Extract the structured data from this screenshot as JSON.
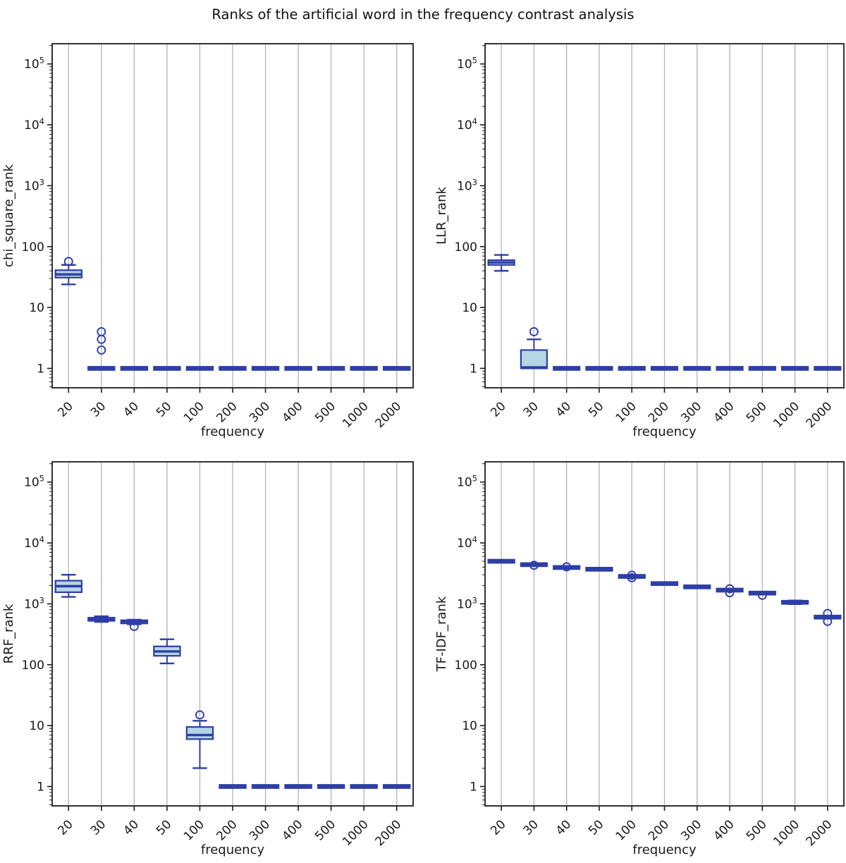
{
  "title": "Ranks of the artificial word in the frequency contrast analysis",
  "colors": {
    "box_edge": "#2e3ea6",
    "box_fill": "#b5d6e4",
    "grid": "#b3b3b3",
    "spine": "#1c1c1c",
    "text": "#1a1a1a"
  },
  "chart_data": [
    {
      "type": "boxplot",
      "position": "top-left",
      "ylabel": "chi_square_rank",
      "xlabel": "frequency",
      "yscale": "log",
      "grid": "vertical-only",
      "categories": [
        "20",
        "30",
        "40",
        "50",
        "100",
        "200",
        "300",
        "400",
        "500",
        "1000",
        "2000"
      ],
      "ylim": [
        0.48,
        215000
      ],
      "yticks": [
        {
          "v": 1,
          "label": "1"
        },
        {
          "v": 10,
          "label": "10"
        },
        {
          "v": 100,
          "label": "100"
        },
        {
          "v": 1000,
          "label": "10^3"
        },
        {
          "v": 10000,
          "label": "10^4"
        },
        {
          "v": 100000,
          "label": "10^5"
        }
      ],
      "boxes": [
        {
          "whislo": 24,
          "q1": 31,
          "med": 35,
          "q3": 41,
          "whishi": 50,
          "fliers": [
            57
          ]
        },
        {
          "whislo": 1,
          "q1": 1,
          "med": 1,
          "q3": 1,
          "whishi": 1,
          "fliers": [
            2,
            3,
            4
          ]
        },
        {
          "whislo": 1,
          "q1": 1,
          "med": 1,
          "q3": 1,
          "whishi": 1,
          "fliers": []
        },
        {
          "whislo": 1,
          "q1": 1,
          "med": 1,
          "q3": 1,
          "whishi": 1,
          "fliers": []
        },
        {
          "whislo": 1,
          "q1": 1,
          "med": 1,
          "q3": 1,
          "whishi": 1,
          "fliers": []
        },
        {
          "whislo": 1,
          "q1": 1,
          "med": 1,
          "q3": 1,
          "whishi": 1,
          "fliers": []
        },
        {
          "whislo": 1,
          "q1": 1,
          "med": 1,
          "q3": 1,
          "whishi": 1,
          "fliers": []
        },
        {
          "whislo": 1,
          "q1": 1,
          "med": 1,
          "q3": 1,
          "whishi": 1,
          "fliers": []
        },
        {
          "whislo": 1,
          "q1": 1,
          "med": 1,
          "q3": 1,
          "whishi": 1,
          "fliers": []
        },
        {
          "whislo": 1,
          "q1": 1,
          "med": 1,
          "q3": 1,
          "whishi": 1,
          "fliers": []
        },
        {
          "whislo": 1,
          "q1": 1,
          "med": 1,
          "q3": 1,
          "whishi": 1,
          "fliers": []
        }
      ]
    },
    {
      "type": "boxplot",
      "position": "top-right",
      "ylabel": "LLR_rank",
      "xlabel": "frequency",
      "yscale": "log",
      "grid": "vertical-only",
      "categories": [
        "20",
        "30",
        "40",
        "50",
        "100",
        "200",
        "300",
        "400",
        "500",
        "1000",
        "2000"
      ],
      "ylim": [
        0.48,
        215000
      ],
      "yticks": [
        {
          "v": 1,
          "label": "1"
        },
        {
          "v": 10,
          "label": "10"
        },
        {
          "v": 100,
          "label": "100"
        },
        {
          "v": 1000,
          "label": "10^3"
        },
        {
          "v": 10000,
          "label": "10^4"
        },
        {
          "v": 100000,
          "label": "10^5"
        }
      ],
      "boxes": [
        {
          "whislo": 40,
          "q1": 50,
          "med": 55,
          "q3": 60,
          "whishi": 73,
          "fliers": []
        },
        {
          "whislo": 1,
          "q1": 1,
          "med": 1,
          "q3": 2,
          "whishi": 3,
          "fliers": [
            4
          ]
        },
        {
          "whislo": 1,
          "q1": 1,
          "med": 1,
          "q3": 1,
          "whishi": 1,
          "fliers": []
        },
        {
          "whislo": 1,
          "q1": 1,
          "med": 1,
          "q3": 1,
          "whishi": 1,
          "fliers": []
        },
        {
          "whislo": 1,
          "q1": 1,
          "med": 1,
          "q3": 1,
          "whishi": 1,
          "fliers": []
        },
        {
          "whislo": 1,
          "q1": 1,
          "med": 1,
          "q3": 1,
          "whishi": 1,
          "fliers": []
        },
        {
          "whislo": 1,
          "q1": 1,
          "med": 1,
          "q3": 1,
          "whishi": 1,
          "fliers": []
        },
        {
          "whislo": 1,
          "q1": 1,
          "med": 1,
          "q3": 1,
          "whishi": 1,
          "fliers": []
        },
        {
          "whislo": 1,
          "q1": 1,
          "med": 1,
          "q3": 1,
          "whishi": 1,
          "fliers": []
        },
        {
          "whislo": 1,
          "q1": 1,
          "med": 1,
          "q3": 1,
          "whishi": 1,
          "fliers": []
        },
        {
          "whislo": 1,
          "q1": 1,
          "med": 1,
          "q3": 1,
          "whishi": 1,
          "fliers": []
        }
      ]
    },
    {
      "type": "boxplot",
      "position": "bottom-left",
      "ylabel": "RRF_rank",
      "xlabel": "frequency",
      "yscale": "log",
      "grid": "vertical-only",
      "categories": [
        "20",
        "30",
        "40",
        "50",
        "100",
        "200",
        "300",
        "400",
        "500",
        "1000",
        "2000"
      ],
      "ylim": [
        0.48,
        215000
      ],
      "yticks": [
        {
          "v": 1,
          "label": "1"
        },
        {
          "v": 10,
          "label": "10"
        },
        {
          "v": 100,
          "label": "100"
        },
        {
          "v": 1000,
          "label": "10^3"
        },
        {
          "v": 10000,
          "label": "10^4"
        },
        {
          "v": 100000,
          "label": "10^5"
        }
      ],
      "boxes": [
        {
          "whislo": 1300,
          "q1": 1550,
          "med": 1950,
          "q3": 2400,
          "whishi": 3000,
          "fliers": []
        },
        {
          "whislo": 505,
          "q1": 535,
          "med": 558,
          "q3": 582,
          "whishi": 625,
          "fliers": []
        },
        {
          "whislo": 462,
          "q1": 488,
          "med": 505,
          "q3": 525,
          "whishi": 548,
          "fliers": [
            425
          ]
        },
        {
          "whislo": 105,
          "q1": 140,
          "med": 165,
          "q3": 200,
          "whishi": 262,
          "fliers": []
        },
        {
          "whislo": 2,
          "q1": 6,
          "med": 7,
          "q3": 9.5,
          "whishi": 12,
          "fliers": [
            15
          ]
        },
        {
          "whislo": 1,
          "q1": 1,
          "med": 1,
          "q3": 1,
          "whishi": 1,
          "fliers": []
        },
        {
          "whislo": 1,
          "q1": 1,
          "med": 1,
          "q3": 1,
          "whishi": 1,
          "fliers": []
        },
        {
          "whislo": 1,
          "q1": 1,
          "med": 1,
          "q3": 1,
          "whishi": 1,
          "fliers": []
        },
        {
          "whislo": 1,
          "q1": 1,
          "med": 1,
          "q3": 1,
          "whishi": 1,
          "fliers": []
        },
        {
          "whislo": 1,
          "q1": 1,
          "med": 1,
          "q3": 1,
          "whishi": 1,
          "fliers": []
        },
        {
          "whislo": 1,
          "q1": 1,
          "med": 1,
          "q3": 1,
          "whishi": 1,
          "fliers": []
        }
      ]
    },
    {
      "type": "boxplot",
      "position": "bottom-right",
      "ylabel": "TF-IDF_rank",
      "xlabel": "frequency",
      "yscale": "log",
      "grid": "vertical-only",
      "categories": [
        "20",
        "30",
        "40",
        "50",
        "100",
        "200",
        "300",
        "400",
        "500",
        "1000",
        "2000"
      ],
      "ylim": [
        0.48,
        215000
      ],
      "yticks": [
        {
          "v": 1,
          "label": "1"
        },
        {
          "v": 10,
          "label": "10"
        },
        {
          "v": 100,
          "label": "100"
        },
        {
          "v": 1000,
          "label": "10^3"
        },
        {
          "v": 10000,
          "label": "10^4"
        },
        {
          "v": 100000,
          "label": "10^5"
        }
      ],
      "boxes": [
        {
          "whislo": 5000,
          "q1": 5000,
          "med": 5000,
          "q3": 5000,
          "whishi": 5000,
          "fliers": []
        },
        {
          "whislo": 4400,
          "q1": 4400,
          "med": 4400,
          "q3": 4400,
          "whishi": 4400,
          "fliers": [
            4300
          ]
        },
        {
          "whislo": 3950,
          "q1": 3950,
          "med": 3950,
          "q3": 3950,
          "whishi": 3950,
          "fliers": [
            4050
          ]
        },
        {
          "whislo": 3700,
          "q1": 3700,
          "med": 3700,
          "q3": 3700,
          "whishi": 3700,
          "fliers": []
        },
        {
          "whislo": 2820,
          "q1": 2820,
          "med": 2820,
          "q3": 2820,
          "whishi": 2820,
          "fliers": [
            2680,
            2950
          ]
        },
        {
          "whislo": 2150,
          "q1": 2150,
          "med": 2150,
          "q3": 2150,
          "whishi": 2150,
          "fliers": []
        },
        {
          "whislo": 1900,
          "q1": 1900,
          "med": 1900,
          "q3": 1900,
          "whishi": 1900,
          "fliers": []
        },
        {
          "whislo": 1630,
          "q1": 1655,
          "med": 1680,
          "q3": 1705,
          "whishi": 1730,
          "fliers": [
            1520,
            1770
          ]
        },
        {
          "whislo": 1500,
          "q1": 1500,
          "med": 1500,
          "q3": 1500,
          "whishi": 1500,
          "fliers": [
            1380
          ]
        },
        {
          "whislo": 990,
          "q1": 1015,
          "med": 1060,
          "q3": 1105,
          "whishi": 1135,
          "fliers": []
        },
        {
          "whislo": 585,
          "q1": 595,
          "med": 605,
          "q3": 615,
          "whishi": 625,
          "fliers": [
            515,
            695
          ]
        }
      ]
    }
  ]
}
